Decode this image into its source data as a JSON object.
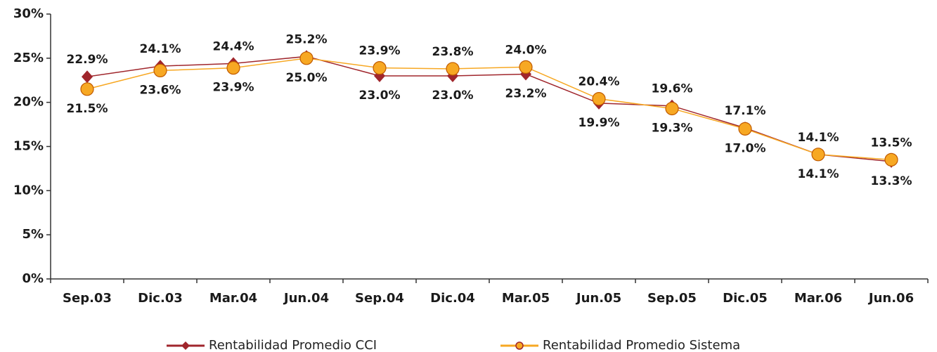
{
  "chart_data": {
    "type": "line",
    "categories": [
      "Sep.03",
      "Dic.03",
      "Mar.04",
      "Jun.04",
      "Sep.04",
      "Dic.04",
      "Mar.05",
      "Jun.05",
      "Sep.05",
      "Dic.05",
      "Mar.06",
      "Jun.06"
    ],
    "series": [
      {
        "name": "Rentabilidad Promedio CCI",
        "color": "#a0262c",
        "marker": "diamond",
        "values": [
          22.9,
          24.1,
          24.4,
          25.2,
          23.0,
          23.0,
          23.2,
          19.9,
          19.6,
          17.1,
          14.1,
          13.3
        ],
        "value_labels": [
          "22.9%",
          "24.1%",
          "24.4%",
          "25.2%",
          "23.0%",
          "23.0%",
          "23.2%",
          "19.9%",
          "19.6%",
          "17.1%",
          "14.1%",
          "13.3%"
        ]
      },
      {
        "name": "Rentabilidad Promedio Sistema",
        "color": "#f7a823",
        "marker": "circle",
        "values": [
          21.5,
          23.6,
          23.9,
          25.0,
          23.9,
          23.8,
          24.0,
          20.4,
          19.3,
          17.0,
          14.1,
          13.5
        ],
        "value_labels": [
          "21.5%",
          "23.6%",
          "23.9%",
          "25.0%",
          "23.9%",
          "23.8%",
          "24.0%",
          "20.4%",
          "19.3%",
          "17.0%",
          "14.1%",
          "13.5%"
        ]
      }
    ],
    "ylim": [
      0,
      30
    ],
    "yticks": [
      {
        "value": 0,
        "label": "0%"
      },
      {
        "value": 5,
        "label": "5%"
      },
      {
        "value": 10,
        "label": "10%"
      },
      {
        "value": 15,
        "label": "15%"
      },
      {
        "value": 20,
        "label": "20%"
      },
      {
        "value": 25,
        "label": "25%"
      },
      {
        "value": 30,
        "label": "30%"
      }
    ],
    "grid": false,
    "legend": "bottom"
  }
}
